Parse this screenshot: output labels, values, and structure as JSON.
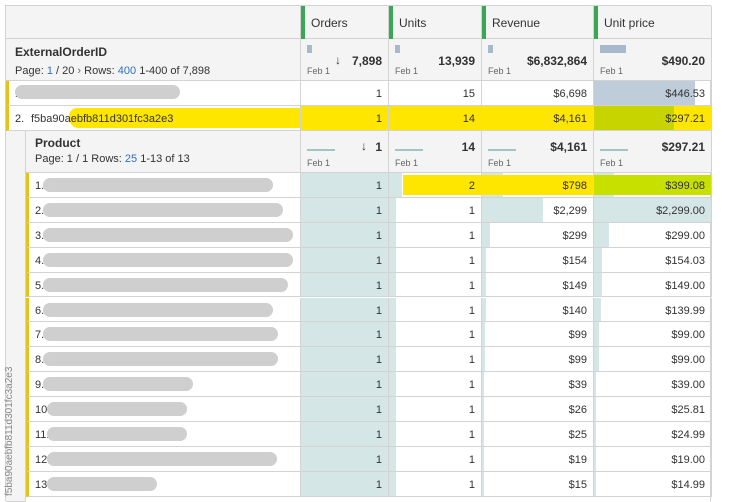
{
  "columns": [
    "Orders",
    "Units",
    "Revenue",
    "Unit price"
  ],
  "outer": {
    "dimension": "ExternalOrderID",
    "page_label": "Page:",
    "page": "1",
    "page_total": "/ 20",
    "rows_label": "Rows:",
    "rows": "400",
    "range": "1-400 of 7,898",
    "totals": [
      "7,898",
      "13,939",
      "$6,832,864",
      "$490.20"
    ],
    "spark_label": "Feb 1"
  },
  "outer_rows": [
    {
      "index": "1.",
      "values": [
        "1",
        "15",
        "$6,698",
        "$446.53"
      ]
    },
    {
      "index": "2.",
      "id": "f5ba90aebfb811d301fc3a2e3",
      "values": [
        "1",
        "14",
        "$4,161",
        "$297.21"
      ]
    }
  ],
  "inner": {
    "dimension": "Product",
    "page_text": "Page: 1 / 1 Rows:",
    "rows": "25",
    "range": "1-13 of 13",
    "totals": [
      "1",
      "14",
      "$4,161",
      "$297.21"
    ],
    "spark_label": "Feb 1",
    "side_label": "f5ba90aebfb811d301fc3a2e3"
  },
  "products": [
    {
      "i": "1.",
      "o": "1",
      "u": "2",
      "r": "$798",
      "p": "$399.08",
      "rv": 798,
      "pv": 399.08,
      "uv": 2
    },
    {
      "i": "2.",
      "o": "1",
      "u": "1",
      "r": "$2,299",
      "p": "$2,299.00",
      "rv": 2299,
      "pv": 2299,
      "uv": 1
    },
    {
      "i": "3.",
      "o": "1",
      "u": "1",
      "r": "$299",
      "p": "$299.00",
      "rv": 299,
      "pv": 299,
      "uv": 1
    },
    {
      "i": "4.",
      "o": "1",
      "u": "1",
      "r": "$154",
      "p": "$154.03",
      "rv": 154,
      "pv": 154.03,
      "uv": 1
    },
    {
      "i": "5.",
      "o": "1",
      "u": "1",
      "r": "$149",
      "p": "$149.00",
      "rv": 149,
      "pv": 149,
      "uv": 1
    },
    {
      "i": "6.",
      "o": "1",
      "u": "1",
      "r": "$140",
      "p": "$139.99",
      "rv": 140,
      "pv": 139.99,
      "uv": 1
    },
    {
      "i": "7.",
      "o": "1",
      "u": "1",
      "r": "$99",
      "p": "$99.00",
      "rv": 99,
      "pv": 99,
      "uv": 1
    },
    {
      "i": "8.",
      "o": "1",
      "u": "1",
      "r": "$99",
      "p": "$99.00",
      "rv": 99,
      "pv": 99,
      "uv": 1
    },
    {
      "i": "9.",
      "o": "1",
      "u": "1",
      "r": "$39",
      "p": "$39.00",
      "rv": 39,
      "pv": 39,
      "uv": 1
    },
    {
      "i": "10.",
      "o": "1",
      "u": "1",
      "r": "$26",
      "p": "$25.81",
      "rv": 26,
      "pv": 25.81,
      "uv": 1
    },
    {
      "i": "11.",
      "o": "1",
      "u": "1",
      "r": "$25",
      "p": "$24.99",
      "rv": 25,
      "pv": 24.99,
      "uv": 1
    },
    {
      "i": "12.",
      "o": "1",
      "u": "1",
      "r": "$19",
      "p": "$19.00",
      "rv": 19,
      "pv": 19,
      "uv": 1
    },
    {
      "i": "13.",
      "o": "1",
      "u": "1",
      "r": "$15",
      "p": "$14.99",
      "rv": 15,
      "pv": 14.99,
      "uv": 1
    }
  ],
  "colors": {
    "bar": "#d5e6e6",
    "grip": "#3aa757",
    "highlight": "#ffe600",
    "row_accent": "#e3c41b"
  }
}
